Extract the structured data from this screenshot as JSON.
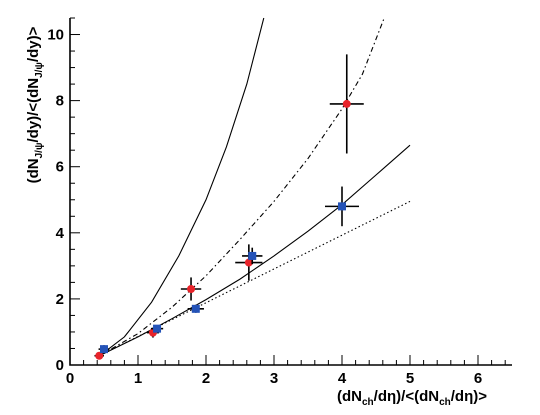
{
  "chart_data": {
    "type": "scatter",
    "title": "",
    "xlim": [
      0,
      6.5
    ],
    "ylim": [
      0,
      10.5
    ],
    "xticks": [
      0,
      1,
      2,
      3,
      4,
      5,
      6
    ],
    "yticks": [
      0,
      2,
      4,
      6,
      8,
      10
    ],
    "xlabel": {
      "pre": "(dN",
      "sub1": "ch",
      "mid": "/dη)/<(dN",
      "sub2": "ch",
      "post": "/dη)>"
    },
    "ylabel": {
      "pre": "(dN",
      "sub1": "J/ψ",
      "mid": "/dy)/<(dN",
      "sub2": "J/ψ",
      "post": "/dy)>"
    },
    "grid": false,
    "legend": "none",
    "series": [
      {
        "color": "#e8232a",
        "marker": "circle",
        "points": [
          {
            "x": 0.43,
            "y": 0.28,
            "xerr": 0.07,
            "yerr": 0.08
          },
          {
            "x": 1.22,
            "y": 0.98,
            "xerr": 0.09,
            "yerr": 0.15
          },
          {
            "x": 1.78,
            "y": 2.3,
            "xerr": 0.15,
            "yerr": 0.35
          },
          {
            "x": 2.63,
            "y": 3.1,
            "xerr": 0.2,
            "yerr": 0.55
          },
          {
            "x": 4.07,
            "y": 7.9,
            "xerr": 0.25,
            "yerr": 1.5
          }
        ]
      },
      {
        "color": "#2453b8",
        "marker": "square",
        "points": [
          {
            "x": 0.5,
            "y": 0.48,
            "xerr": 0.08,
            "yerr": 0.12
          },
          {
            "x": 1.28,
            "y": 1.1,
            "xerr": 0.09,
            "yerr": 0.1
          },
          {
            "x": 1.85,
            "y": 1.7,
            "xerr": 0.12,
            "yerr": 0.12
          },
          {
            "x": 2.68,
            "y": 3.3,
            "xerr": 0.15,
            "yerr": 0.25
          },
          {
            "x": 4.0,
            "y": 4.8,
            "xerr": 0.25,
            "yerr": 0.6
          }
        ]
      }
    ],
    "curves": [
      {
        "style": "solid",
        "points": [
          [
            0.45,
            0.3
          ],
          [
            0.8,
            0.85
          ],
          [
            1.2,
            1.9
          ],
          [
            1.6,
            3.3
          ],
          [
            2.0,
            5.0
          ],
          [
            2.3,
            6.6
          ],
          [
            2.6,
            8.5
          ],
          [
            2.85,
            10.5
          ]
        ]
      },
      {
        "style": "dashdot",
        "points": [
          [
            0.45,
            0.3
          ],
          [
            1.0,
            0.95
          ],
          [
            1.5,
            1.75
          ],
          [
            2.0,
            2.7
          ],
          [
            2.5,
            3.8
          ],
          [
            3.0,
            4.95
          ],
          [
            3.5,
            6.25
          ],
          [
            4.0,
            7.75
          ],
          [
            4.3,
            8.8
          ],
          [
            4.62,
            10.5
          ]
        ]
      },
      {
        "style": "solid",
        "points": [
          [
            0.45,
            0.3
          ],
          [
            1.0,
            0.85
          ],
          [
            1.5,
            1.4
          ],
          [
            2.0,
            1.98
          ],
          [
            2.5,
            2.6
          ],
          [
            3.0,
            3.3
          ],
          [
            3.5,
            4.05
          ],
          [
            4.0,
            4.85
          ],
          [
            4.5,
            5.75
          ],
          [
            5.0,
            6.65
          ]
        ]
      },
      {
        "style": "dotted",
        "points": [
          [
            0.45,
            0.3
          ],
          [
            5.0,
            4.95
          ]
        ]
      }
    ]
  }
}
